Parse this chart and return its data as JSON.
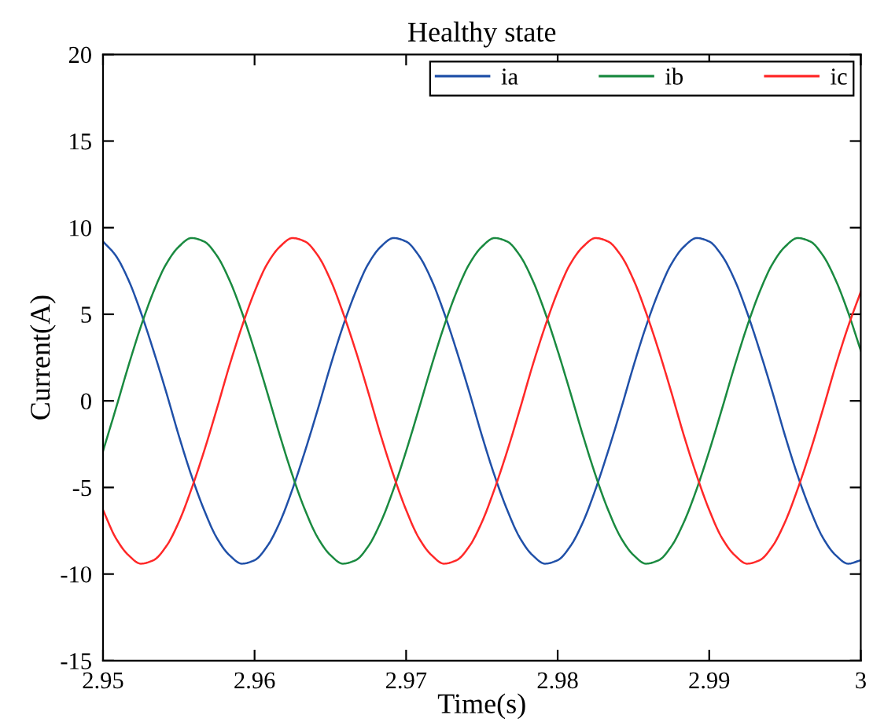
{
  "chart_data": {
    "type": "line",
    "title": "Healthy state",
    "xlabel": "Time(s)",
    "ylabel": "Current(A)",
    "x": [
      2.95,
      2.95083,
      2.95167,
      2.9525,
      2.95333,
      2.95417,
      2.955,
      2.95583,
      2.95667,
      2.9575,
      2.95833,
      2.95917,
      2.96,
      2.96083,
      2.96167,
      2.9625,
      2.96333,
      2.96417,
      2.965,
      2.96583,
      2.96667,
      2.9675,
      2.96833,
      2.96917,
      2.97,
      2.97083,
      2.97167,
      2.9725,
      2.97333,
      2.97417,
      2.975,
      2.97583,
      2.97667,
      2.9775,
      2.97833,
      2.97917,
      2.98,
      2.98083,
      2.98167,
      2.9825,
      2.98333,
      2.98417,
      2.985,
      2.98583,
      2.98667,
      2.9875,
      2.98833,
      2.98917,
      2.99,
      2.99083,
      2.99167,
      2.9925,
      2.99333,
      2.99417,
      2.995,
      2.99583,
      2.99667,
      2.9975,
      2.99833,
      2.99917,
      3.0
    ],
    "series": [
      {
        "name": "ia",
        "color": "#2050a8",
        "values": [
          9.2,
          8.4,
          7.0,
          5.1,
          2.9,
          0.5,
          -2.0,
          -4.3,
          -6.3,
          -7.9,
          -8.9,
          -9.4,
          -9.2,
          -8.4,
          -7.0,
          -5.1,
          -2.9,
          -0.5,
          2.0,
          4.3,
          6.3,
          7.9,
          8.9,
          9.4,
          9.2,
          8.4,
          7.0,
          5.1,
          2.9,
          0.5,
          -2.0,
          -4.3,
          -6.3,
          -7.9,
          -8.9,
          -9.4,
          -9.2,
          -8.4,
          -7.0,
          -5.1,
          -2.9,
          -0.5,
          2.0,
          4.3,
          6.3,
          7.9,
          8.9,
          9.4,
          9.2,
          8.4,
          7.0,
          5.1,
          2.9,
          0.5,
          -2.0,
          -4.3,
          -6.3,
          -7.9,
          -8.9,
          -9.4,
          -9.2
        ]
      },
      {
        "name": "ib",
        "color": "#1a8a40",
        "values": [
          -2.9,
          -0.5,
          2.0,
          4.3,
          6.3,
          7.9,
          8.9,
          9.4,
          9.2,
          8.4,
          7.0,
          5.1,
          2.9,
          0.5,
          -2.0,
          -4.3,
          -6.3,
          -7.9,
          -8.9,
          -9.4,
          -9.2,
          -8.4,
          -7.0,
          -5.1,
          -2.9,
          -0.5,
          2.0,
          4.3,
          6.3,
          7.9,
          8.9,
          9.4,
          9.2,
          8.4,
          7.0,
          5.1,
          2.9,
          0.5,
          -2.0,
          -4.3,
          -6.3,
          -7.9,
          -8.9,
          -9.4,
          -9.2,
          -8.4,
          -7.0,
          -5.1,
          -2.9,
          -0.5,
          2.0,
          4.3,
          6.3,
          7.9,
          8.9,
          9.4,
          9.2,
          8.4,
          7.0,
          5.1,
          2.9
        ]
      },
      {
        "name": "ic",
        "color": "#ff2828",
        "values": [
          -6.3,
          -7.9,
          -8.9,
          -9.4,
          -9.2,
          -8.4,
          -7.0,
          -5.1,
          -2.9,
          -0.5,
          2.0,
          4.3,
          6.3,
          7.9,
          8.9,
          9.4,
          9.2,
          8.4,
          7.0,
          5.1,
          2.9,
          0.5,
          -2.0,
          -4.3,
          -6.3,
          -7.9,
          -8.9,
          -9.4,
          -9.2,
          -8.4,
          -7.0,
          -5.1,
          -2.9,
          -0.5,
          2.0,
          4.3,
          6.3,
          7.9,
          8.9,
          9.4,
          9.2,
          8.4,
          7.0,
          5.1,
          2.9,
          0.5,
          -2.0,
          -4.3,
          -6.3,
          -7.9,
          -8.9,
          -9.4,
          -9.2,
          -8.4,
          -7.0,
          -5.1,
          -2.9,
          -0.5,
          2.0,
          4.3,
          6.3
        ]
      }
    ],
    "xlim": [
      2.95,
      3.0
    ],
    "xticks": [
      2.95,
      2.96,
      2.97,
      2.98,
      2.99,
      {
        "value": 3.0,
        "label": "3"
      }
    ],
    "ylim": [
      -15,
      20
    ],
    "yticks": [
      -15,
      -10,
      -5,
      0,
      5,
      10,
      15,
      20
    ],
    "grid": false,
    "legend": "top right",
    "marker": "none",
    "line_style": "solid"
  }
}
